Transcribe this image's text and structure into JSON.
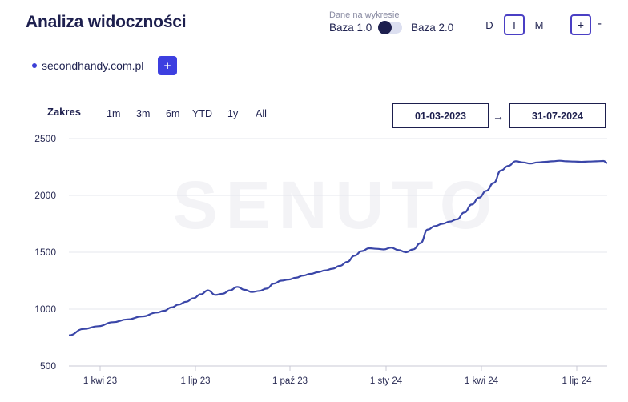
{
  "header": {
    "title": "Analiza widoczności"
  },
  "base_switch": {
    "caption": "Dane na wykresie",
    "left_label": "Baza 1.0",
    "right_label": "Baza 2.0",
    "selected": "Baza 1.0"
  },
  "period": {
    "options": [
      "D",
      "T",
      "M"
    ],
    "active": "T"
  },
  "zoom": {
    "in_label": "+",
    "out_label": "-"
  },
  "domain": {
    "label": "secondhandy.com.pl",
    "add_label": "+"
  },
  "range": {
    "label": "Zakres",
    "options": [
      "1m",
      "3m",
      "6m",
      "YTD",
      "1y",
      "All"
    ]
  },
  "dates": {
    "from": "01-03-2023",
    "arrow": "→",
    "to": "31-07-2024"
  },
  "watermark": "SENUTO",
  "colors": {
    "accent": "#4a3fc4",
    "line": "#3a46a8",
    "text": "#1d1f4e",
    "button": "#3d3fe0"
  },
  "chart_data": {
    "type": "line",
    "ylim": [
      500,
      2500
    ],
    "yticks": [
      "2500",
      "2000",
      "1500",
      "1000",
      "500"
    ],
    "xticks": [
      "1 kwi 23",
      "1 lip 23",
      "1 paź 23",
      "1 sty 24",
      "1 kwi 24",
      "1 lip 24"
    ],
    "grid": true,
    "series": [
      {
        "x": [
          0,
          2,
          4,
          6,
          8,
          10,
          12,
          13,
          14,
          15,
          16,
          17,
          18,
          19,
          20,
          21,
          22,
          23,
          24,
          25,
          26,
          27,
          28,
          29,
          30,
          31,
          32,
          33,
          34,
          35,
          36,
          37,
          38,
          39,
          40,
          41,
          42,
          43,
          44,
          45,
          46,
          47,
          48,
          49,
          50,
          51,
          52,
          53,
          54,
          55,
          56,
          57,
          58,
          59,
          60,
          61,
          62,
          63,
          64,
          65,
          66,
          67,
          68,
          69,
          70,
          71,
          72,
          73,
          73.5
        ],
        "values": [
          770,
          825,
          850,
          885,
          910,
          935,
          970,
          985,
          1015,
          1040,
          1065,
          1095,
          1130,
          1165,
          1125,
          1135,
          1165,
          1195,
          1170,
          1150,
          1160,
          1180,
          1225,
          1250,
          1260,
          1275,
          1295,
          1310,
          1325,
          1340,
          1355,
          1380,
          1415,
          1470,
          1510,
          1535,
          1530,
          1525,
          1540,
          1520,
          1500,
          1525,
          1580,
          1700,
          1730,
          1750,
          1770,
          1790,
          1850,
          1920,
          1980,
          2040,
          2110,
          2220,
          2260,
          2300,
          2290,
          2280,
          2290,
          2295,
          2300,
          2305,
          2300,
          2298,
          2295,
          2298,
          2300,
          2303,
          2285
        ],
        "values_note": ""
      }
    ]
  }
}
